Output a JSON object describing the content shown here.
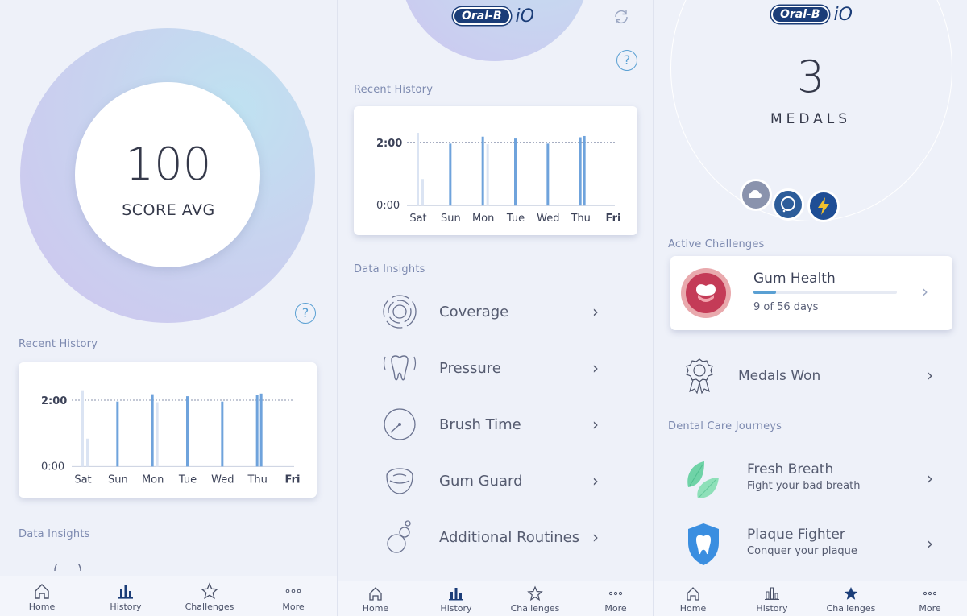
{
  "panel1": {
    "score_value": "100",
    "score_label": "SCORE AVG",
    "recent_history_label": "Recent History",
    "data_insights_label": "Data Insights"
  },
  "panel2": {
    "brand": "Oral-B",
    "brand_suffix": "iO",
    "recent_history_label": "Recent History",
    "data_insights_label": "Data Insights",
    "insights": [
      {
        "label": "Coverage",
        "icon": "coverage-icon"
      },
      {
        "label": "Pressure",
        "icon": "tooth-pressure-icon"
      },
      {
        "label": "Brush Time",
        "icon": "timer-icon"
      },
      {
        "label": "Gum Guard",
        "icon": "gum-guard-icon"
      },
      {
        "label": "Additional Routines",
        "icon": "bubbles-icon"
      }
    ]
  },
  "panel3": {
    "brand": "Oral-B",
    "brand_suffix": "iO",
    "medal_count": "3",
    "medal_label": "MEDALS",
    "active_challenges_label": "Active Challenges",
    "challenge": {
      "title": "Gum Health",
      "progress_text": "9 of 56 days",
      "progress": 0.16
    },
    "medals_won_label": "Medals Won",
    "journeys_label": "Dental Care Journeys",
    "journeys": [
      {
        "title": "Fresh Breath",
        "subtitle": "Fight your bad breath",
        "icon": "leaves-icon"
      },
      {
        "title": "Plaque Fighter",
        "subtitle": "Conquer your plaque",
        "icon": "shield-tooth-icon"
      }
    ]
  },
  "history_chart": {
    "y_labels": [
      "2:00",
      "0:00"
    ],
    "days": [
      "Sat",
      "Sun",
      "Mon",
      "Tue",
      "Wed",
      "Thu",
      "Fri"
    ],
    "bold_day": "Fri"
  },
  "nav": {
    "home": "Home",
    "history": "History",
    "challenges": "Challenges",
    "more": "More"
  },
  "colors": {
    "accent": "#5aa0d3",
    "bar": "#6fa3dc",
    "bar_light": "#dbe4f3",
    "brand": "#1b3d78"
  }
}
